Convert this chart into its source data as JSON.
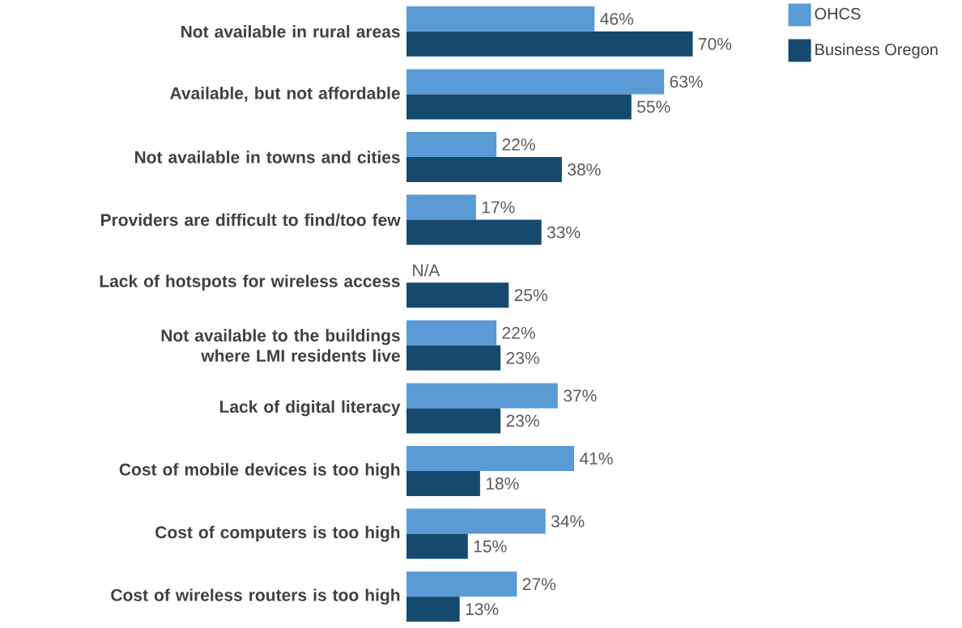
{
  "chart_data": {
    "type": "bar",
    "orientation": "horizontal",
    "categories": [
      "Not available in rural areas",
      "Available, but not affordable",
      "Not available in towns and cities",
      "Providers are difficult to find/too few",
      "Lack of hotspots for wireless access",
      "Not available to the buildings where LMI residents live",
      "Lack of digital literacy",
      "Cost of mobile devices is too high",
      "Cost of computers is too high",
      "Cost of wireless routers is too high"
    ],
    "legend": "top right",
    "tick_labels": "y",
    "series": [
      {
        "name": "OHCS",
        "color": "#5b9bd5",
        "values": [
          46,
          63,
          22,
          17,
          null,
          22,
          37,
          41,
          34,
          27
        ],
        "value_labels": [
          "46%",
          "63%",
          "22%",
          "17%",
          "N/A",
          "22%",
          "37%",
          "41%",
          "34%",
          "27%"
        ]
      },
      {
        "name": "Business Oregon",
        "color": "#154a6e",
        "values": [
          70,
          55,
          38,
          33,
          25,
          23,
          23,
          18,
          15,
          13
        ],
        "value_labels": [
          "70%",
          "55%",
          "38%",
          "33%",
          "25%",
          "23%",
          "23%",
          "18%",
          "15%",
          "13%"
        ]
      }
    ]
  }
}
